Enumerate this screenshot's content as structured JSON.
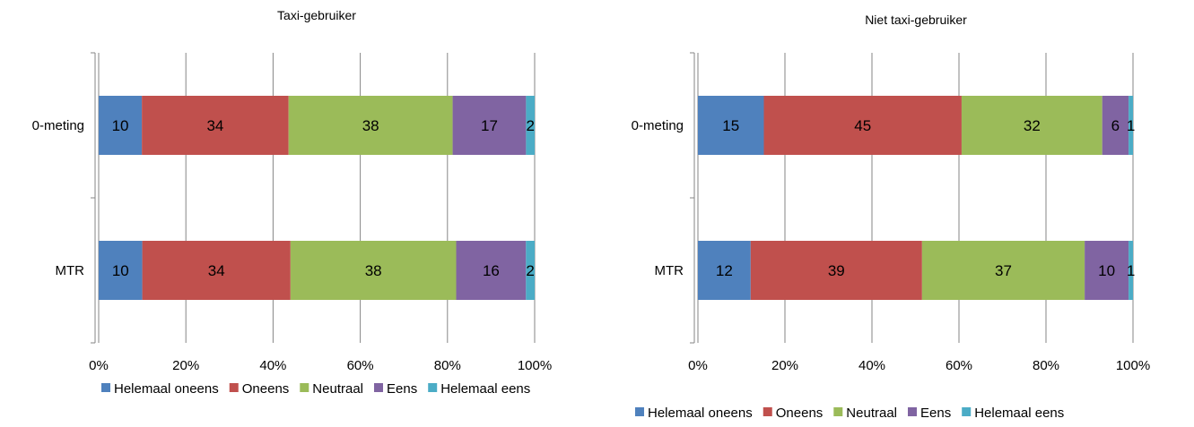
{
  "chart_data": [
    {
      "type": "bar",
      "orientation": "horizontal",
      "stacked": "percent",
      "title": "Taxi-gebruiker",
      "categories": [
        "0-meting",
        "MTR"
      ],
      "series": [
        {
          "name": "Helemaal oneens",
          "values": [
            10,
            10
          ]
        },
        {
          "name": "Oneens",
          "values": [
            34,
            34
          ]
        },
        {
          "name": "Neutraal",
          "values": [
            38,
            38
          ]
        },
        {
          "name": "Eens",
          "values": [
            17,
            16
          ]
        },
        {
          "name": "Helemaal eens",
          "values": [
            2,
            2
          ]
        }
      ],
      "xlim": [
        0,
        100
      ],
      "xticks": [
        "0%",
        "20%",
        "40%",
        "60%",
        "80%",
        "100%"
      ],
      "grid": "vertical",
      "legend": "bottom"
    },
    {
      "type": "bar",
      "orientation": "horizontal",
      "stacked": "percent",
      "title": "Niet taxi-gebruiker",
      "categories": [
        "0-meting",
        "MTR"
      ],
      "series": [
        {
          "name": "Helemaal oneens",
          "values": [
            15,
            12
          ]
        },
        {
          "name": "Oneens",
          "values": [
            45,
            39
          ]
        },
        {
          "name": "Neutraal",
          "values": [
            32,
            37
          ]
        },
        {
          "name": "Eens",
          "values": [
            6,
            10
          ]
        },
        {
          "name": "Helemaal eens",
          "values": [
            1,
            1
          ]
        }
      ],
      "xlim": [
        0,
        100
      ],
      "xticks": [
        "0%",
        "20%",
        "40%",
        "60%",
        "80%",
        "100%"
      ],
      "grid": "vertical",
      "legend": "bottom"
    }
  ],
  "colors": [
    "#4f81bd",
    "#c0504d",
    "#9bbb59",
    "#8064a2",
    "#4bacc6"
  ]
}
